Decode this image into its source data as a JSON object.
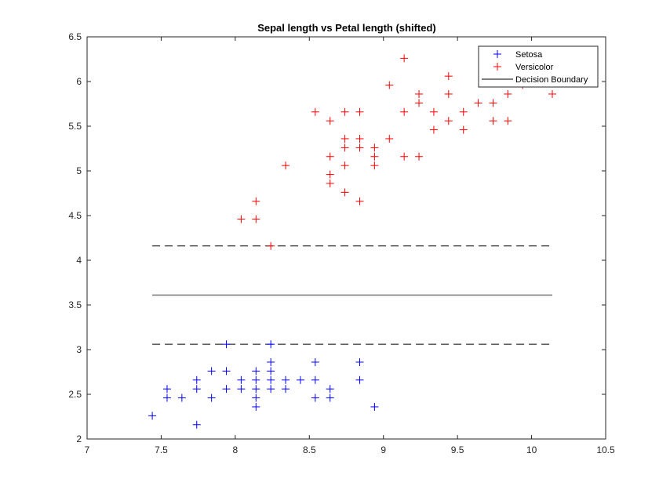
{
  "chart_data": {
    "type": "scatter",
    "title": "Sepal length vs Petal length (shifted)",
    "xlabel": "",
    "ylabel": "",
    "xlim": [
      7,
      10.5
    ],
    "ylim": [
      2,
      6.5
    ],
    "xticks": [
      "7",
      "7.5",
      "8",
      "8.5",
      "9",
      "9.5",
      "10",
      "10.5"
    ],
    "yticks": [
      "2",
      "2.5",
      "3",
      "3.5",
      "4",
      "4.5",
      "5",
      "5.5",
      "6",
      "6.5"
    ],
    "grid": false,
    "legend_position": "top-right",
    "series": [
      {
        "name": "Setosa",
        "color": "#0000ff",
        "marker": "plus",
        "points": [
          [
            7.44,
            2.26
          ],
          [
            7.54,
            2.56
          ],
          [
            7.54,
            2.46
          ],
          [
            7.64,
            2.46
          ],
          [
            7.74,
            2.66
          ],
          [
            7.74,
            2.56
          ],
          [
            7.74,
            2.16
          ],
          [
            7.84,
            2.76
          ],
          [
            7.84,
            2.46
          ],
          [
            7.94,
            3.06
          ],
          [
            7.94,
            2.76
          ],
          [
            7.94,
            2.56
          ],
          [
            8.04,
            2.66
          ],
          [
            8.04,
            2.56
          ],
          [
            8.14,
            2.76
          ],
          [
            8.14,
            2.66
          ],
          [
            8.14,
            2.56
          ],
          [
            8.14,
            2.46
          ],
          [
            8.14,
            2.36
          ],
          [
            8.24,
            3.06
          ],
          [
            8.24,
            2.86
          ],
          [
            8.24,
            2.76
          ],
          [
            8.24,
            2.66
          ],
          [
            8.24,
            2.56
          ],
          [
            8.34,
            2.66
          ],
          [
            8.34,
            2.56
          ],
          [
            8.44,
            2.66
          ],
          [
            8.54,
            2.86
          ],
          [
            8.54,
            2.66
          ],
          [
            8.54,
            2.46
          ],
          [
            8.64,
            2.56
          ],
          [
            8.64,
            2.46
          ],
          [
            8.84,
            2.86
          ],
          [
            8.84,
            2.66
          ],
          [
            8.94,
            2.36
          ]
        ]
      },
      {
        "name": "Versicolor",
        "color": "#ff0000",
        "marker": "plus",
        "points": [
          [
            8.04,
            4.46
          ],
          [
            8.14,
            4.66
          ],
          [
            8.14,
            4.46
          ],
          [
            8.24,
            4.16
          ],
          [
            8.34,
            5.06
          ],
          [
            8.54,
            5.66
          ],
          [
            8.64,
            5.56
          ],
          [
            8.64,
            5.16
          ],
          [
            8.64,
            4.96
          ],
          [
            8.64,
            4.86
          ],
          [
            8.74,
            5.66
          ],
          [
            8.74,
            5.36
          ],
          [
            8.74,
            5.26
          ],
          [
            8.74,
            5.06
          ],
          [
            8.74,
            4.76
          ],
          [
            8.84,
            5.66
          ],
          [
            8.84,
            5.36
          ],
          [
            8.84,
            5.26
          ],
          [
            8.84,
            4.66
          ],
          [
            8.94,
            5.26
          ],
          [
            8.94,
            5.16
          ],
          [
            8.94,
            5.06
          ],
          [
            9.04,
            5.96
          ],
          [
            9.04,
            5.36
          ],
          [
            9.14,
            6.26
          ],
          [
            9.14,
            5.66
          ],
          [
            9.14,
            5.16
          ],
          [
            9.24,
            5.86
          ],
          [
            9.24,
            5.76
          ],
          [
            9.24,
            5.16
          ],
          [
            9.34,
            5.66
          ],
          [
            9.34,
            5.46
          ],
          [
            9.44,
            6.06
          ],
          [
            9.44,
            5.86
          ],
          [
            9.44,
            5.56
          ],
          [
            9.54,
            5.66
          ],
          [
            9.54,
            5.46
          ],
          [
            9.64,
            5.76
          ],
          [
            9.74,
            5.76
          ],
          [
            9.74,
            5.56
          ],
          [
            9.84,
            5.86
          ],
          [
            9.84,
            5.56
          ],
          [
            9.94,
            5.96
          ],
          [
            10.14,
            5.86
          ]
        ]
      }
    ],
    "lines": [
      {
        "name": "Decision Boundary",
        "color": "#808080",
        "style": "solid",
        "x": [
          7.44,
          10.14
        ],
        "y": [
          3.61,
          3.61
        ]
      },
      {
        "name": "",
        "color": "#000000",
        "style": "dashed",
        "x": [
          7.44,
          10.14
        ],
        "y": [
          3.06,
          3.06
        ]
      },
      {
        "name": "",
        "color": "#000000",
        "style": "dashed",
        "x": [
          7.44,
          10.14
        ],
        "y": [
          4.16,
          4.16
        ]
      }
    ],
    "legend": [
      "Setosa",
      "Versicolor",
      "Decision Boundary"
    ]
  }
}
